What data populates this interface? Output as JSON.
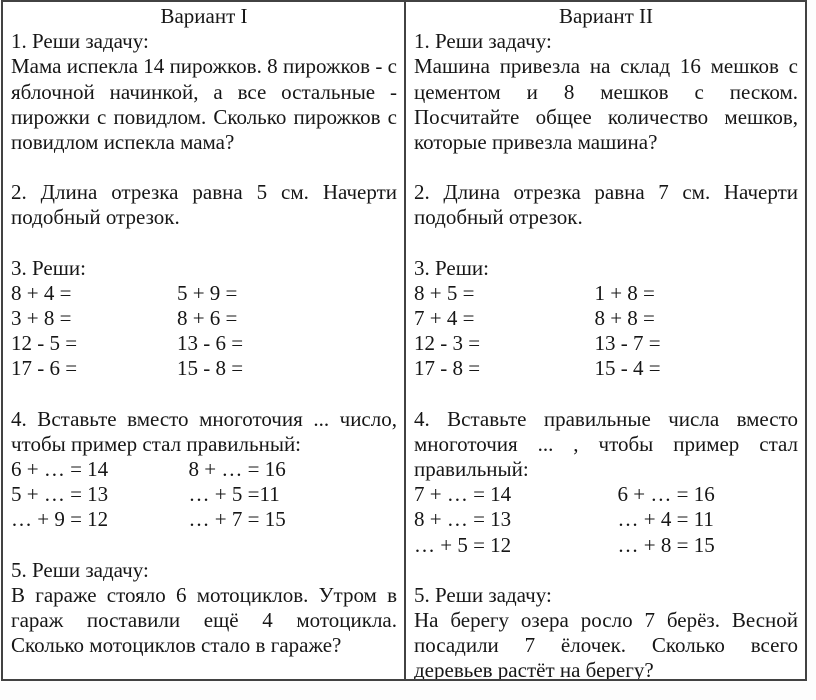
{
  "page": {
    "background": "#fdfdfd",
    "cell_background": "#ffffff",
    "border_color": "#424242",
    "text_color": "#161616"
  },
  "variant1": {
    "title": "Вариант I",
    "task1_heading": "1. Реши задачу:",
    "task1_body": "Мама испекла 14 пирожков. 8 пирожков - с яблочной начинкой, а все остальные - пирожки с повидлом. Сколько пирожков с повидлом испекла мама?",
    "task2_body": "2. Длина отрезка равна 5 см. Начерти подобный отрезок.",
    "task3_heading": "3. Реши:",
    "task3_rows": [
      [
        "8 + 4 =",
        "5 + 9 ="
      ],
      [
        "3 + 8 =",
        "8 + 6 ="
      ],
      [
        "12 - 5 =",
        "13 - 6 ="
      ],
      [
        "17 - 6 =",
        "15 - 8 ="
      ]
    ],
    "task4_heading": "4. Вставьте вместо многоточия ... число, чтобы пример стал правильный:",
    "task4_rows": [
      [
        "6 + … = 14",
        "8 + … = 16"
      ],
      [
        "5 + … = 13",
        "… + 5 =11"
      ],
      [
        "… + 9 = 12",
        "… + 7 = 15"
      ]
    ],
    "task5_heading": "5. Реши задачу:",
    "task5_body": "В гараже стояло 6 мотоциклов. Утром в гараж поставили ещё 4 мотоцикла. Сколько мотоциклов стало в гараже?"
  },
  "variant2": {
    "title": "Вариант II",
    "task1_heading": "1. Реши задачу:",
    "task1_body": "Машина привезла на склад 16 мешков с цементом и 8 мешков с песком. Посчитайте общее количество мешков, которые привезла машина?",
    "task2_body": "2. Длина отрезка равна 7 см. Начерти подобный отрезок.",
    "task3_heading": "3. Реши:",
    "task3_rows": [
      [
        "8 + 5 =",
        "1 + 8 ="
      ],
      [
        "7 + 4 =",
        "8 + 8 ="
      ],
      [
        "12 - 3 =",
        "13 - 7 ="
      ],
      [
        "17 - 8 =",
        "15 - 4 ="
      ]
    ],
    "task4_heading": "4. Вставьте правильные числа вместо многоточия ... , чтобы пример стал правильный:",
    "task4_rows": [
      [
        "7 + … = 14",
        "6 + … = 16"
      ],
      [
        "8 + … = 13",
        "… + 4 = 11"
      ],
      [
        "… + 5 = 12",
        "… + 8 = 15"
      ]
    ],
    "task5_heading": "5. Реши задачу:",
    "task5_body": "На берегу озера росло 7 берёз. Весной посадили 7 ёлочек. Сколько всего деревьев растёт на берегу?"
  }
}
